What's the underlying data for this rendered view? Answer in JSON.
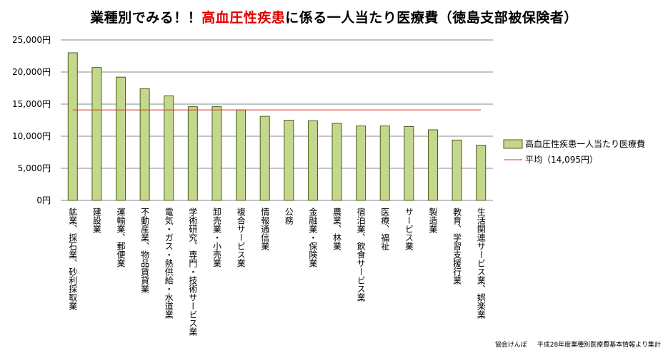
{
  "title": {
    "prefix": "業種別でみる！！",
    "highlight": "高血圧性疾患",
    "suffix": "に係る一人当たり医療費（徳島支部被保険者）"
  },
  "colors": {
    "bar_fill": "#c3d88d",
    "bar_stroke": "#4d5c1f",
    "average_line": "#d9362e",
    "highlight_text": "#e00000",
    "gridline": "#888888"
  },
  "chart_data": {
    "type": "bar",
    "title": "業種別でみる！！高血圧性疾患に係る一人当たり医療費（徳島支部被保険者）",
    "categories": [
      "鉱業、採石業、砂利採取業",
      "建設業",
      "運輸業、郵便業",
      "不動産業、物品賃貸業",
      "電気・ガス・熱供給・水道業",
      "学術研究、専門・技術サービス業",
      "卸売業・小売業",
      "複合サービス業",
      "情報通信業",
      "公務",
      "金融業・保険業",
      "農業、林業",
      "宿泊業、飲食サービス業",
      "医療、福祉",
      "サービス業",
      "製造業",
      "教育、学習支援行業",
      "生活関連サービス業、娯楽業"
    ],
    "series": [
      {
        "name": "高血圧性疾患一人当たり医療費",
        "values": [
          23000,
          20700,
          19200,
          17400,
          16300,
          14600,
          14600,
          14100,
          13100,
          12500,
          12400,
          12000,
          11600,
          11600,
          11500,
          11000,
          9400,
          8600
        ]
      }
    ],
    "average": {
      "name": "平均（14,095円）",
      "value": 14095
    },
    "ylim": [
      0,
      25000
    ],
    "yticks": [
      0,
      5000,
      10000,
      15000,
      20000,
      25000
    ],
    "ytick_labels": [
      "0円",
      "5,000円",
      "10,000円",
      "15,000円",
      "20,000円",
      "25,000円"
    ],
    "grid": true,
    "legend": "right"
  },
  "source": {
    "org": "協会けんぽ",
    "note": "平成28年度業種別医療費基本情報より集計"
  }
}
